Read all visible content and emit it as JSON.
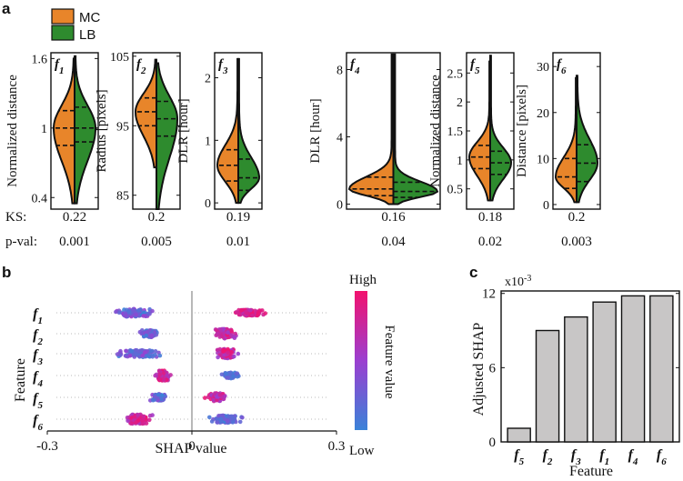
{
  "chart_data": [
    {
      "panel": "a",
      "type": "violin",
      "legend": [
        {
          "label": "MC",
          "color": "#E8852A"
        },
        {
          "label": "LB",
          "color": "#2E8B2E"
        }
      ],
      "row_labels": {
        "ks": "KS:",
        "pval": "p-val:"
      },
      "subplots": [
        {
          "feature": "f",
          "sub": "1",
          "ylabel": "Normalized distance",
          "ylim": [
            0.3,
            1.65
          ],
          "ticks": [
            0.4,
            1,
            1.6
          ],
          "tick_labels": [
            "0.4",
            "1",
            "1.6"
          ],
          "ks": "0.22",
          "pval": "0.001",
          "mc": {
            "min": 0.35,
            "max": 1.6,
            "q1": 0.85,
            "median": 1.0,
            "q3": 1.15
          },
          "lb": {
            "min": 0.35,
            "max": 1.62,
            "q1": 0.88,
            "median": 1.0,
            "q3": 1.18
          }
        },
        {
          "feature": "f",
          "sub": "2",
          "ylabel": "Radius [pixels]",
          "ylim": [
            83,
            105.5
          ],
          "ticks": [
            85,
            95,
            105
          ],
          "tick_labels": [
            "85",
            "95",
            "105"
          ],
          "ks": "0.2",
          "pval": "0.005",
          "mc": {
            "min": 89,
            "max": 104.5,
            "q1": 95,
            "median": 97,
            "q3": 99
          },
          "lb": {
            "min": 83,
            "max": 104,
            "q1": 93.5,
            "median": 96,
            "q3": 98.5
          }
        },
        {
          "feature": "f",
          "sub": "3",
          "ylabel": "DLR [hour]",
          "ylim": [
            -0.1,
            2.4
          ],
          "ticks": [
            0,
            1,
            2
          ],
          "tick_labels": [
            "0",
            "1",
            "2"
          ],
          "ks": "0.19",
          "pval": "0.01",
          "mc": {
            "min": 0.0,
            "max": 2.3,
            "q1": 0.35,
            "median": 0.6,
            "q3": 0.85
          },
          "lb": {
            "min": 0.0,
            "max": 2.3,
            "q1": 0.2,
            "median": 0.4,
            "q3": 0.7
          }
        },
        {
          "feature": "f",
          "sub": "4",
          "ylabel": "DLR [hour]",
          "ylim": [
            -0.3,
            9.0
          ],
          "ticks": [
            0,
            4,
            8
          ],
          "tick_labels": [
            "0",
            "4",
            "8"
          ],
          "ks": "0.16",
          "pval": "0.04",
          "mc": {
            "min": 0.0,
            "max": 8.9,
            "q1": 0.5,
            "median": 0.9,
            "q3": 1.6
          },
          "lb": {
            "min": 0.0,
            "max": 8.9,
            "q1": 0.4,
            "median": 0.75,
            "q3": 1.3
          }
        },
        {
          "feature": "f",
          "sub": "5",
          "ylabel": "Normalized distance",
          "ylim": [
            0.15,
            2.85
          ],
          "ticks": [
            0.5,
            1,
            1.5,
            2,
            2.5
          ],
          "tick_labels": [
            "0.5",
            "1",
            "1.5",
            "2",
            "2.5"
          ],
          "ks": "0.18",
          "pval": "0.02",
          "mc": {
            "min": 0.3,
            "max": 2.7,
            "q1": 0.85,
            "median": 1.05,
            "q3": 1.25
          },
          "lb": {
            "min": 0.3,
            "max": 2.8,
            "q1": 0.75,
            "median": 0.95,
            "q3": 1.15
          }
        },
        {
          "feature": "f",
          "sub": "6",
          "ylabel": "Distance [pixels]",
          "ylim": [
            -1,
            33
          ],
          "ticks": [
            0,
            10,
            20,
            30
          ],
          "tick_labels": [
            "0",
            "10",
            "20",
            "30"
          ],
          "ks": "0.2",
          "pval": "0.003",
          "mc": {
            "min": 0.5,
            "max": 27.5,
            "q1": 3.5,
            "median": 6,
            "q3": 10
          },
          "lb": {
            "min": 0.5,
            "max": 28,
            "q1": 5,
            "median": 9,
            "q3": 13
          }
        }
      ]
    },
    {
      "panel": "b",
      "type": "scatter",
      "subtype": "beeswarm",
      "xlabel": "SHAP value",
      "ylabel": "Feature",
      "xlim": [
        -0.3,
        0.3
      ],
      "x_ticks": [
        -0.3,
        0,
        0.3
      ],
      "x_tick_labels": [
        "-0.3",
        "0",
        "0.3"
      ],
      "colorbar": {
        "label": "Feature value",
        "high": "High",
        "low": "Low",
        "colors": [
          "#3A82D8",
          "#9B3FD0",
          "#F2126E"
        ]
      },
      "features": [
        {
          "name": "f",
          "sub": "1",
          "clusters": [
            {
              "center": -0.12,
              "spread": 0.11,
              "count": 95,
              "vlow": 0.0,
              "vhigh": 0.55,
              "width": 0.65
            },
            {
              "center": 0.12,
              "spread": 0.11,
              "count": 80,
              "vlow": 0.65,
              "vhigh": 1.0,
              "width": 0.5
            }
          ]
        },
        {
          "name": "f",
          "sub": "2",
          "clusters": [
            {
              "center": -0.09,
              "spread": 0.06,
              "count": 60,
              "vlow": 0.0,
              "vhigh": 0.45,
              "width": 0.6
            },
            {
              "center": 0.07,
              "spread": 0.07,
              "count": 80,
              "vlow": 0.5,
              "vhigh": 1.0,
              "width": 0.8
            }
          ]
        },
        {
          "name": "f",
          "sub": "3",
          "clusters": [
            {
              "center": -0.11,
              "spread": 0.13,
              "count": 100,
              "vlow": 0.0,
              "vhigh": 0.5,
              "width": 0.6
            },
            {
              "center": 0.07,
              "spread": 0.07,
              "count": 85,
              "vlow": 0.45,
              "vhigh": 1.0,
              "width": 0.8
            }
          ]
        },
        {
          "name": "f",
          "sub": "4",
          "clusters": [
            {
              "center": -0.06,
              "spread": 0.05,
              "count": 75,
              "vlow": 0.55,
              "vhigh": 1.0,
              "width": 0.85
            },
            {
              "center": 0.08,
              "spread": 0.06,
              "count": 50,
              "vlow": 0.0,
              "vhigh": 0.3,
              "width": 0.5
            }
          ]
        },
        {
          "name": "f",
          "sub": "5",
          "clusters": [
            {
              "center": -0.07,
              "spread": 0.06,
              "count": 70,
              "vlow": 0.0,
              "vhigh": 0.5,
              "width": 0.6
            },
            {
              "center": 0.05,
              "spread": 0.06,
              "count": 60,
              "vlow": 0.5,
              "vhigh": 1.0,
              "width": 0.7
            }
          ]
        },
        {
          "name": "f",
          "sub": "6",
          "clusters": [
            {
              "center": -0.11,
              "spread": 0.09,
              "count": 90,
              "vlow": 0.55,
              "vhigh": 1.0,
              "width": 0.8
            },
            {
              "center": 0.07,
              "spread": 0.11,
              "count": 90,
              "vlow": 0.0,
              "vhigh": 0.35,
              "width": 0.6
            }
          ]
        }
      ]
    },
    {
      "panel": "c",
      "type": "bar",
      "xlabel": "Feature",
      "ylabel": "Adjusted SHAP",
      "scale_label": "x10",
      "scale_exp": "-3",
      "ylim": [
        0,
        12.2
      ],
      "y_ticks": [
        0,
        6,
        12
      ],
      "y_tick_labels": [
        "0",
        "6",
        "12"
      ],
      "bar_color": "#C8C6C6",
      "categories": [
        {
          "name": "f",
          "sub": "5"
        },
        {
          "name": "f",
          "sub": "2"
        },
        {
          "name": "f",
          "sub": "3"
        },
        {
          "name": "f",
          "sub": "1"
        },
        {
          "name": "f",
          "sub": "4"
        },
        {
          "name": "f",
          "sub": "6"
        }
      ],
      "values": [
        1.1,
        9.0,
        10.1,
        11.3,
        11.8,
        11.8
      ]
    }
  ]
}
